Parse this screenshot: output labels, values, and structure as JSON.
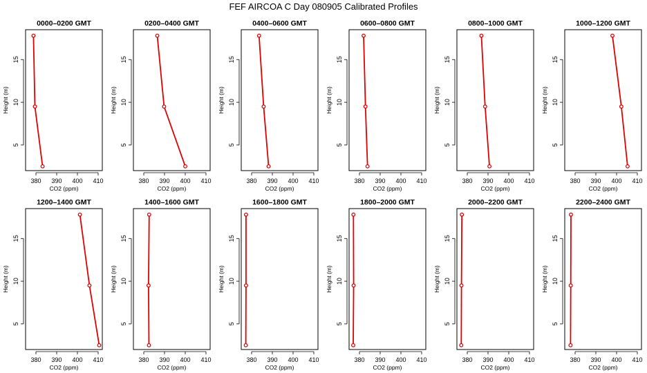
{
  "figure": {
    "title": "FEF AIRCOA C  Day 080905  Calibrated Profiles",
    "series_color": "#e00000"
  },
  "chart_data": [
    {
      "type": "line",
      "title": "0000–0200 GMT",
      "xlabel": "CO2 (ppm)",
      "ylabel": "Height (m)",
      "xlim": [
        375,
        412
      ],
      "ylim": [
        2,
        18.5
      ],
      "xticks": [
        380,
        390,
        400,
        410
      ],
      "yticks": [
        5,
        10,
        15
      ],
      "x": [
        378.8,
        379.5,
        383.2
      ],
      "y": [
        17.8,
        9.5,
        2.5
      ]
    },
    {
      "type": "line",
      "title": "0200–0400 GMT",
      "xlabel": "CO2 (ppm)",
      "ylabel": "Height (m)",
      "xlim": [
        375,
        412
      ],
      "ylim": [
        2,
        18.5
      ],
      "xticks": [
        380,
        390,
        400,
        410
      ],
      "yticks": [
        5,
        10,
        15
      ],
      "x": [
        386.5,
        389.8,
        400.0
      ],
      "y": [
        17.8,
        9.5,
        2.5
      ]
    },
    {
      "type": "line",
      "title": "0400–0600 GMT",
      "xlabel": "CO2 (ppm)",
      "ylabel": "Height (m)",
      "xlim": [
        375,
        412
      ],
      "ylim": [
        2,
        18.5
      ],
      "xticks": [
        380,
        390,
        400,
        410
      ],
      "yticks": [
        5,
        10,
        15
      ],
      "x": [
        383.6,
        385.8,
        388.2
      ],
      "y": [
        17.8,
        9.5,
        2.5
      ]
    },
    {
      "type": "line",
      "title": "0600–0800 GMT",
      "xlabel": "CO2 (ppm)",
      "ylabel": "Height (m)",
      "xlim": [
        375,
        412
      ],
      "ylim": [
        2,
        18.5
      ],
      "xticks": [
        380,
        390,
        400,
        410
      ],
      "yticks": [
        5,
        10,
        15
      ],
      "x": [
        382.0,
        382.9,
        383.9
      ],
      "y": [
        17.8,
        9.5,
        2.5
      ]
    },
    {
      "type": "line",
      "title": "0800–1000 GMT",
      "xlabel": "CO2 (ppm)",
      "ylabel": "Height (m)",
      "xlim": [
        375,
        412
      ],
      "ylim": [
        2,
        18.5
      ],
      "xticks": [
        380,
        390,
        400,
        410
      ],
      "yticks": [
        5,
        10,
        15
      ],
      "x": [
        386.8,
        388.6,
        390.7
      ],
      "y": [
        17.8,
        9.5,
        2.5
      ]
    },
    {
      "type": "line",
      "title": "1000–1200 GMT",
      "xlabel": "CO2 (ppm)",
      "ylabel": "Height (m)",
      "xlim": [
        375,
        412
      ],
      "ylim": [
        2,
        18.5
      ],
      "xticks": [
        380,
        390,
        400,
        410
      ],
      "yticks": [
        5,
        10,
        15
      ],
      "x": [
        398.0,
        402.3,
        405.3
      ],
      "y": [
        17.8,
        9.5,
        2.5
      ]
    },
    {
      "type": "line",
      "title": "1200–1400 GMT",
      "xlabel": "CO2 (ppm)",
      "ylabel": "Height (m)",
      "xlim": [
        375,
        412
      ],
      "ylim": [
        2,
        18.5
      ],
      "xticks": [
        380,
        390,
        400,
        410
      ],
      "yticks": [
        5,
        10,
        15
      ],
      "x": [
        401.2,
        405.8,
        410.5
      ],
      "y": [
        17.8,
        9.5,
        2.5
      ]
    },
    {
      "type": "line",
      "title": "1400–1600 GMT",
      "xlabel": "CO2 (ppm)",
      "ylabel": "Height (m)",
      "xlim": [
        375,
        412
      ],
      "ylim": [
        2,
        18.5
      ],
      "xticks": [
        380,
        390,
        400,
        410
      ],
      "yticks": [
        5,
        10,
        15
      ],
      "x": [
        382.6,
        382.3,
        382.5
      ],
      "y": [
        17.8,
        9.5,
        2.5
      ]
    },
    {
      "type": "line",
      "title": "1600–1800 GMT",
      "xlabel": "CO2 (ppm)",
      "ylabel": "Height (m)",
      "xlim": [
        375,
        412
      ],
      "ylim": [
        2,
        18.5
      ],
      "xticks": [
        380,
        390,
        400,
        410
      ],
      "yticks": [
        5,
        10,
        15
      ],
      "x": [
        377.3,
        377.3,
        377.2
      ],
      "y": [
        17.8,
        9.5,
        2.5
      ]
    },
    {
      "type": "line",
      "title": "1800–2000 GMT",
      "xlabel": "CO2 (ppm)",
      "ylabel": "Height (m)",
      "xlim": [
        375,
        412
      ],
      "ylim": [
        2,
        18.5
      ],
      "xticks": [
        380,
        390,
        400,
        410
      ],
      "yticks": [
        5,
        10,
        15
      ],
      "x": [
        377.1,
        377.2,
        377.0
      ],
      "y": [
        17.8,
        9.5,
        2.5
      ]
    },
    {
      "type": "line",
      "title": "2000–2200 GMT",
      "xlabel": "CO2 (ppm)",
      "ylabel": "Height (m)",
      "xlim": [
        375,
        412
      ],
      "ylim": [
        2,
        18.5
      ],
      "xticks": [
        380,
        390,
        400,
        410
      ],
      "yticks": [
        5,
        10,
        15
      ],
      "x": [
        377.4,
        377.2,
        377.1
      ],
      "y": [
        17.8,
        9.5,
        2.5
      ]
    },
    {
      "type": "line",
      "title": "2200–2400 GMT",
      "xlabel": "CO2 (ppm)",
      "ylabel": "Height (m)",
      "xlim": [
        375,
        412
      ],
      "ylim": [
        2,
        18.5
      ],
      "xticks": [
        380,
        390,
        400,
        410
      ],
      "yticks": [
        5,
        10,
        15
      ],
      "x": [
        378.0,
        377.9,
        377.8
      ],
      "y": [
        17.8,
        9.5,
        2.5
      ]
    }
  ]
}
